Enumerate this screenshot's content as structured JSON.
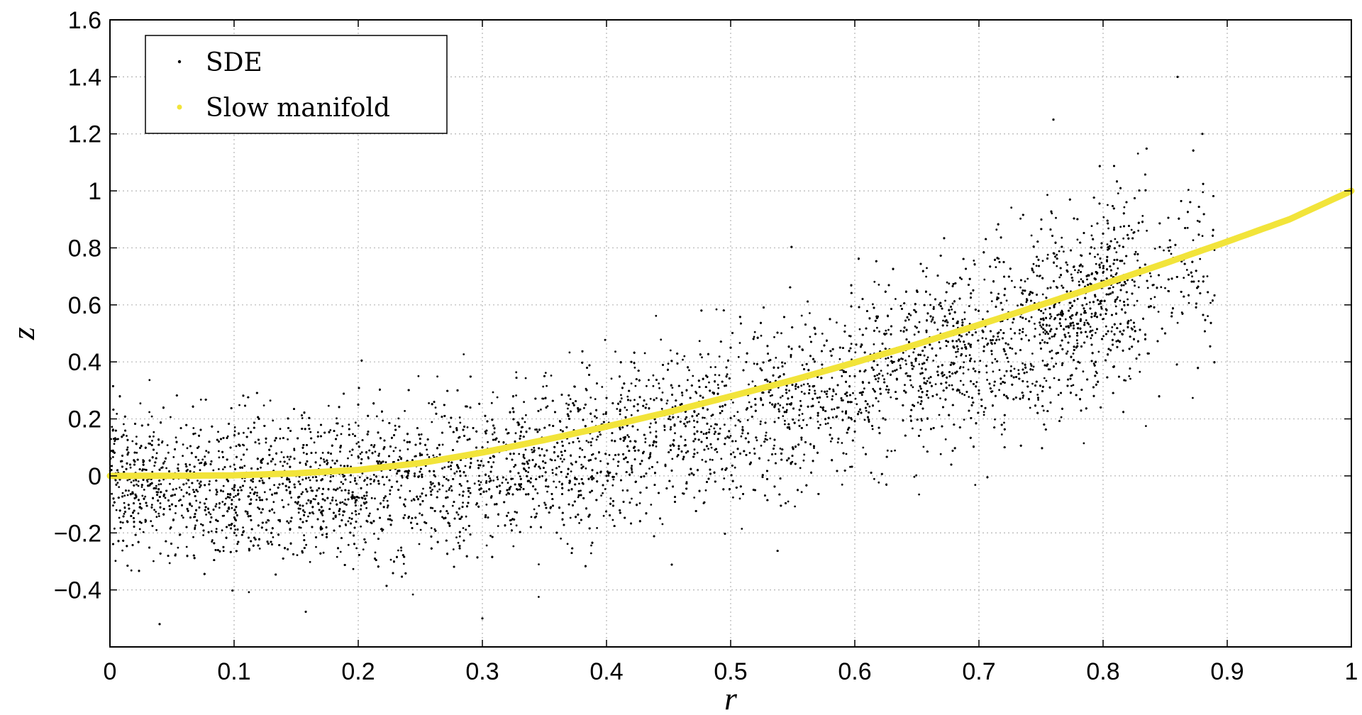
{
  "chart_data": {
    "type": "scatter",
    "xlabel": "r",
    "ylabel": "z",
    "xlim": [
      0,
      1
    ],
    "ylim": [
      -0.6,
      1.6
    ],
    "xticks": [
      "0",
      "0.1",
      "0.2",
      "0.3",
      "0.4",
      "0.5",
      "0.6",
      "0.7",
      "0.8",
      "0.9",
      "1"
    ],
    "yticks": [
      "1.6",
      "1.4",
      "1.2",
      "1",
      "0.8",
      "0.6",
      "0.4",
      "0.2",
      "0",
      "−0.2",
      "−0.4"
    ],
    "xtick_values": [
      0,
      0.1,
      0.2,
      0.3,
      0.4,
      0.5,
      0.6,
      0.7,
      0.8,
      0.9,
      1
    ],
    "ytick_values": [
      1.6,
      1.4,
      1.2,
      1.0,
      0.8,
      0.6,
      0.4,
      0.2,
      0.0,
      -0.2,
      -0.4
    ],
    "grid": true,
    "legend_position": "top-left",
    "series": [
      {
        "name": "SDE",
        "kind": "scatter",
        "color": "#000000",
        "description_points": "dense cloud of points around the slow manifold",
        "sample_points": [
          [
            0.02,
            0.05
          ],
          [
            0.05,
            -0.1
          ],
          [
            0.08,
            0.12
          ],
          [
            0.1,
            -0.05
          ],
          [
            0.12,
            0.2
          ],
          [
            0.15,
            0.0
          ],
          [
            0.18,
            -0.15
          ],
          [
            0.2,
            0.25
          ],
          [
            0.22,
            0.05
          ],
          [
            0.25,
            -0.1
          ],
          [
            0.28,
            0.3
          ],
          [
            0.3,
            0.1
          ],
          [
            0.32,
            -0.05
          ],
          [
            0.35,
            0.35
          ],
          [
            0.38,
            0.15
          ],
          [
            0.4,
            0.0
          ],
          [
            0.42,
            0.4
          ],
          [
            0.45,
            0.2
          ],
          [
            0.48,
            0.05
          ],
          [
            0.5,
            0.45
          ],
          [
            0.52,
            0.25
          ],
          [
            0.55,
            0.1
          ],
          [
            0.58,
            0.55
          ],
          [
            0.6,
            0.35
          ],
          [
            0.62,
            0.15
          ],
          [
            0.65,
            0.65
          ],
          [
            0.68,
            0.45
          ],
          [
            0.7,
            0.3
          ],
          [
            0.72,
            0.75
          ],
          [
            0.75,
            0.55
          ],
          [
            0.78,
            0.4
          ],
          [
            0.8,
            0.85
          ],
          [
            0.82,
            0.6
          ],
          [
            0.85,
            0.5
          ],
          [
            0.86,
            1.4
          ],
          [
            0.88,
            1.2
          ],
          [
            0.04,
            -0.52
          ],
          [
            0.3,
            -0.5
          ],
          [
            0.76,
            1.25
          ]
        ]
      },
      {
        "name": "Slow manifold",
        "kind": "line",
        "color": "#f2e43a",
        "x": [
          0,
          0.05,
          0.1,
          0.15,
          0.2,
          0.25,
          0.3,
          0.35,
          0.4,
          0.45,
          0.5,
          0.55,
          0.6,
          0.65,
          0.7,
          0.75,
          0.8,
          0.85,
          0.9,
          0.95,
          1
        ],
        "y": [
          0,
          0.0003,
          0.002,
          0.009,
          0.021,
          0.045,
          0.082,
          0.126,
          0.173,
          0.224,
          0.279,
          0.336,
          0.398,
          0.462,
          0.53,
          0.6,
          0.672,
          0.746,
          0.822,
          0.9,
          1.0
        ]
      }
    ]
  }
}
